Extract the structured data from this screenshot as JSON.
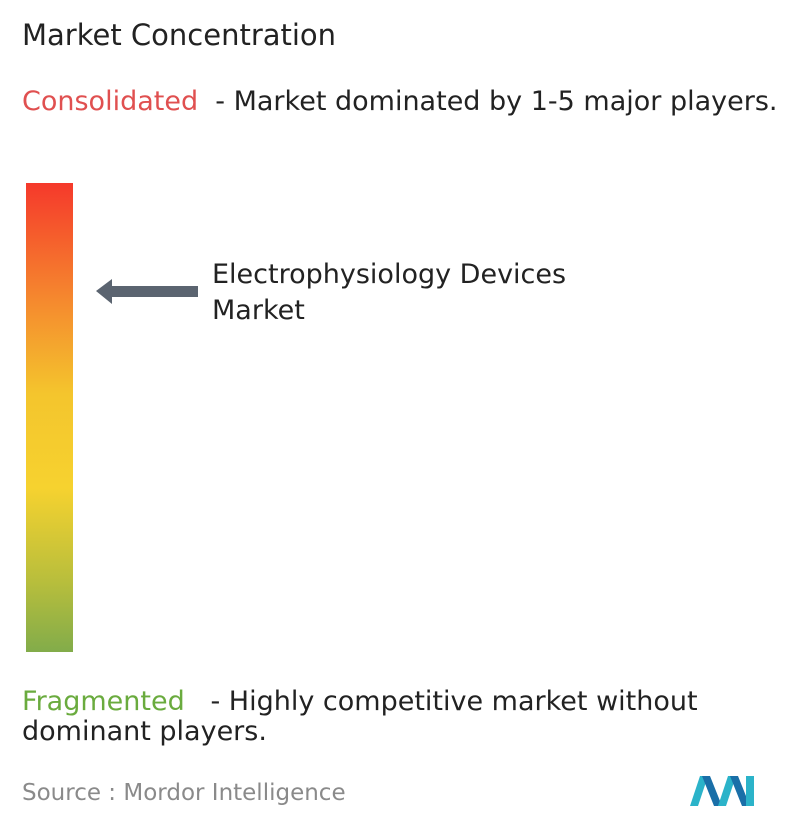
{
  "title": "Market Concentration",
  "consolidated": {
    "label": "Consolidated",
    "description": "- Market dominated by 1-5 major players."
  },
  "market_label": "Electrophysiology Devices Market",
  "fragmented": {
    "label": "Fragmented",
    "description": "- Highly competitive market without dominant players."
  },
  "source": {
    "prefix": "Source :",
    "name": "Mordor Intelligence"
  }
}
